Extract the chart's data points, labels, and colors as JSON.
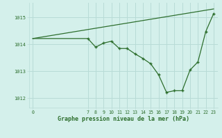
{
  "xlabel": "Graphe pression niveau de la mer (hPa)",
  "background_color": "#d4f0eb",
  "grid_color": "#b8dbd6",
  "line_color": "#2d6e2d",
  "tick_label_color": "#2d6e2d",
  "xlabel_color": "#2d6e2d",
  "yticks": [
    1012,
    1013,
    1014,
    1015
  ],
  "xtick_values": [
    0,
    7,
    8,
    9,
    10,
    11,
    12,
    13,
    14,
    15,
    16,
    17,
    18,
    19,
    20,
    21,
    22,
    23
  ],
  "ylim": [
    1011.65,
    1015.55
  ],
  "xlim": [
    -0.5,
    23.5
  ],
  "series1_x": [
    0,
    7,
    8,
    9,
    10,
    11,
    12,
    13,
    14,
    15,
    16,
    17,
    18,
    19,
    20,
    21,
    22,
    23
  ],
  "series1_y": [
    1014.22,
    1014.22,
    1013.9,
    1014.05,
    1014.12,
    1013.85,
    1013.85,
    1013.65,
    1013.48,
    1013.28,
    1012.87,
    1012.22,
    1012.28,
    1012.28,
    1013.05,
    1013.35,
    1014.48,
    1015.15
  ],
  "series2_x": [
    0,
    23
  ],
  "series2_y": [
    1014.22,
    1015.32
  ],
  "marker_x": [
    7,
    8,
    9,
    10,
    11,
    12,
    13,
    14,
    15,
    16,
    17,
    18,
    19,
    20,
    21,
    22,
    23
  ],
  "marker_y": [
    1014.22,
    1013.9,
    1014.05,
    1014.12,
    1013.85,
    1013.85,
    1013.65,
    1013.48,
    1013.28,
    1012.87,
    1012.22,
    1012.28,
    1012.28,
    1013.05,
    1013.35,
    1014.48,
    1015.15
  ]
}
